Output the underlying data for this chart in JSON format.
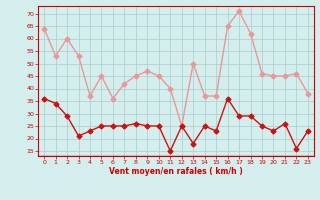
{
  "x": [
    0,
    1,
    2,
    3,
    4,
    5,
    6,
    7,
    8,
    9,
    10,
    11,
    12,
    13,
    14,
    15,
    16,
    17,
    18,
    19,
    20,
    21,
    22,
    23
  ],
  "wind_avg": [
    36,
    34,
    29,
    21,
    23,
    25,
    25,
    25,
    26,
    25,
    25,
    15,
    25,
    18,
    25,
    23,
    36,
    29,
    29,
    25,
    23,
    26,
    16,
    23
  ],
  "wind_gust": [
    64,
    53,
    60,
    53,
    37,
    45,
    36,
    42,
    45,
    47,
    45,
    40,
    25,
    50,
    37,
    37,
    65,
    71,
    62,
    46,
    45,
    45,
    46,
    38
  ],
  "xlabel": "Vent moyen/en rafales ( km/h )",
  "yticks": [
    15,
    20,
    25,
    30,
    35,
    40,
    45,
    50,
    55,
    60,
    65,
    70
  ],
  "xticks": [
    0,
    1,
    2,
    3,
    4,
    5,
    6,
    7,
    8,
    9,
    10,
    11,
    12,
    13,
    14,
    15,
    16,
    17,
    18,
    19,
    20,
    21,
    22,
    23
  ],
  "ylim": [
    13,
    73
  ],
  "xlim": [
    -0.5,
    23.5
  ],
  "bg_color": "#d4eeee",
  "avg_color": "#cc1111",
  "gust_color": "#e89898",
  "grid_color": "#aacccc",
  "axis_color": "#cc0000",
  "tick_label_color": "#cc0000",
  "xlabel_color": "#cc0000",
  "marker_size": 2.5,
  "linewidth": 1.0
}
